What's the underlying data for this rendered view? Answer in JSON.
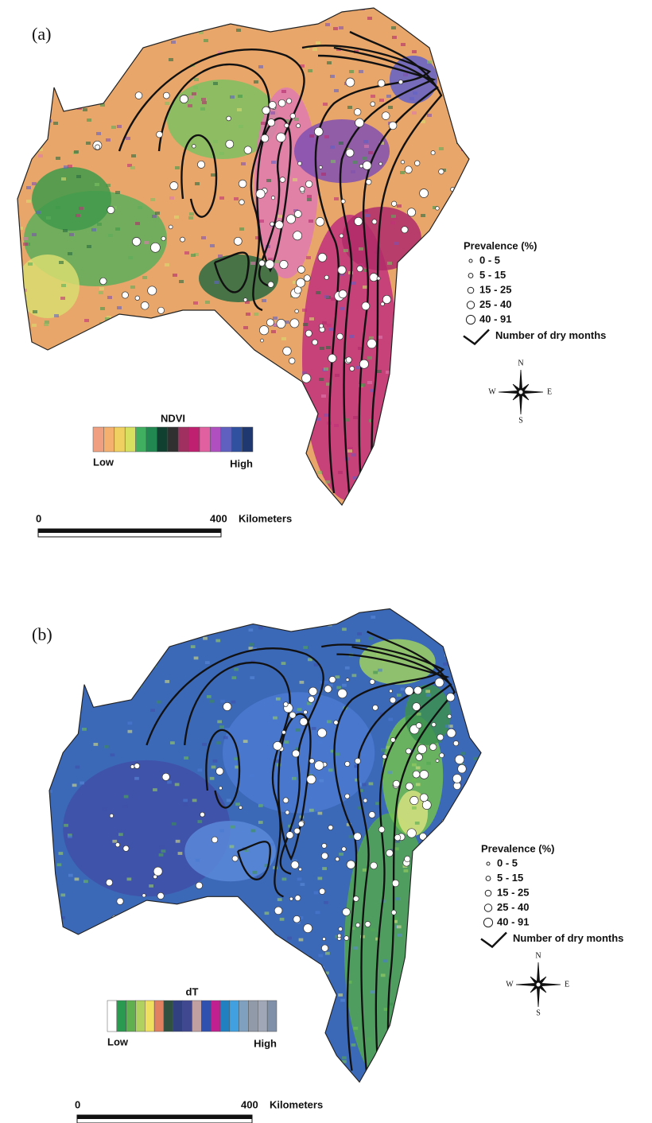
{
  "panels": [
    {
      "label": "(a)",
      "legend": {
        "title": "Prevalence (%)",
        "items": [
          "0 - 5",
          "5 - 15",
          "15 - 25",
          "25 - 40",
          "40 - 91"
        ],
        "line_label": "Number of dry months"
      },
      "compass": {
        "n": "N",
        "s": "S",
        "e": "E",
        "w": "W"
      },
      "colorbar": {
        "title": "NDVI",
        "low": "Low",
        "high": "High",
        "colors": [
          "#f0a080",
          "#f5b070",
          "#f0d060",
          "#d8e060",
          "#40b060",
          "#208850",
          "#104030",
          "#303030",
          "#a03060",
          "#c02070",
          "#e060a0",
          "#b050c0",
          "#6060c0",
          "#3050a0",
          "#203870"
        ]
      },
      "scale": {
        "start": "0",
        "end": "400",
        "unit": "Kilometers"
      }
    },
    {
      "label": "(b)",
      "legend": {
        "title": "Prevalence (%)",
        "items": [
          "0 - 5",
          "5 - 15",
          "15 - 25",
          "25 - 40",
          "40 - 91"
        ],
        "line_label": "Number of dry months"
      },
      "compass": {
        "n": "N",
        "s": "S",
        "e": "E",
        "w": "W"
      },
      "colorbar": {
        "title": "dT",
        "low": "Low",
        "high": "High",
        "colors": [
          "#ffffff",
          "#2a9a50",
          "#60b050",
          "#b0d060",
          "#f0e060",
          "#e08060",
          "#305040",
          "#304080",
          "#404890",
          "#c0a0a0",
          "#3050b0",
          "#c02090",
          "#2080c0",
          "#40a0e0",
          "#80a0c0",
          "#909aa8",
          "#a0a8b8",
          "#8090a8"
        ]
      },
      "scale": {
        "start": "0",
        "end": "400",
        "unit": "Kilometers"
      }
    }
  ]
}
